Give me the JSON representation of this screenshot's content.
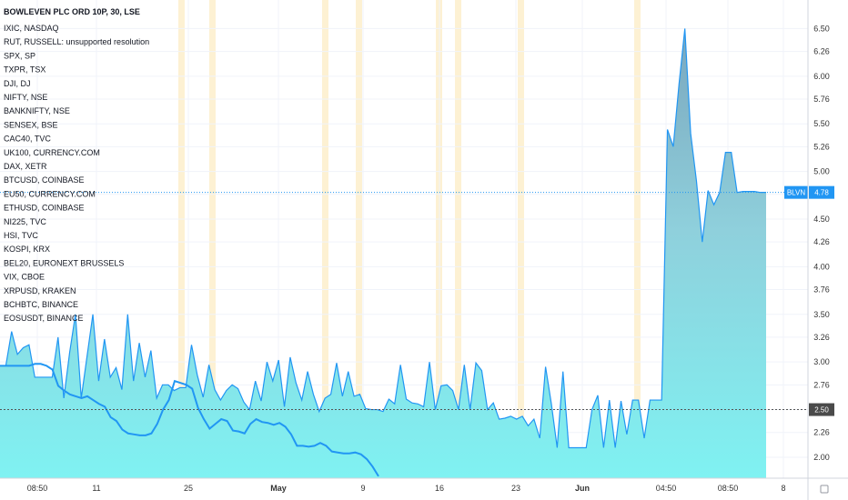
{
  "chart_data": {
    "type": "area",
    "title": "BOWLEVEN PLC ORD 10P, 30, LSE",
    "legend": [
      "IXIC, NASDAQ",
      "RUT, RUSSELL: unsupported resolution",
      "SPX, SP",
      "TXPR, TSX",
      "DJI, DJ",
      "NIFTY, NSE",
      "BANKNIFTY, NSE",
      "SENSEX, BSE",
      "CAC40, TVC",
      "UK100, CURRENCY.COM",
      "DAX, XETR",
      "BTCUSD, COINBASE",
      "EU50, CURRENCY.COM",
      "ETHUSD, COINBASE",
      "NI225, TVC",
      "HSI, TVC",
      "KOSPI, KRX",
      "BEL20, EURONEXT BRUSSELS",
      "VIX, CBOE",
      "XRPUSD, KRAKEN",
      "BCHBTC, BINANCE",
      "EOSUSDT, BINANCE"
    ],
    "y_ticks": [
      "6.50",
      "6.26",
      "6.00",
      "5.76",
      "5.50",
      "5.26",
      "5.00",
      "4.76",
      "4.50",
      "4.26",
      "4.00",
      "3.76",
      "3.50",
      "3.26",
      "3.00",
      "2.76",
      "2.50",
      "2.26",
      "2.00"
    ],
    "x_ticks": [
      "08:50",
      "11",
      "25",
      "May",
      "9",
      "16",
      "23",
      "Jun",
      "04:50",
      "08:50",
      "8"
    ],
    "ylim": [
      1.78,
      6.8
    ],
    "last_price": {
      "symbol": "BLVN",
      "value": "4.78"
    },
    "reference_level": {
      "value": "2.50"
    },
    "series": [
      {
        "values": [
          2.96,
          2.96,
          3.32,
          3.08,
          3.15,
          3.18,
          2.84,
          2.84,
          2.84,
          2.84,
          3.26,
          2.62,
          3.1,
          3.5,
          2.62,
          3.06,
          3.5,
          2.8,
          3.24,
          2.84,
          2.94,
          2.71,
          3.5,
          2.8,
          3.2,
          2.84,
          3.12,
          2.62,
          2.76,
          2.76,
          2.7,
          2.73,
          2.73,
          3.18,
          2.86,
          2.63,
          2.97,
          2.71,
          2.6,
          2.7,
          2.76,
          2.72,
          2.58,
          2.5,
          2.8,
          2.59,
          3.0,
          2.8,
          3.02,
          2.53,
          3.05,
          2.78,
          2.6,
          2.9,
          2.66,
          2.48,
          2.62,
          2.66,
          2.99,
          2.64,
          2.9,
          2.64,
          2.66,
          2.51,
          2.5,
          2.5,
          2.48,
          2.61,
          2.56,
          2.97,
          2.61,
          2.57,
          2.56,
          2.53,
          3.0,
          2.5,
          2.75,
          2.76,
          2.7,
          2.5,
          2.97,
          2.5,
          2.99,
          2.91,
          2.5,
          2.57,
          2.4,
          2.41,
          2.43,
          2.4,
          2.43,
          2.33,
          2.4,
          2.2,
          2.95,
          2.56,
          2.1,
          2.9,
          2.1,
          2.1,
          2.1,
          2.1,
          2.5,
          2.65,
          2.1,
          2.6,
          2.1,
          2.59,
          2.24,
          2.6,
          2.6,
          2.2,
          2.6,
          2.6,
          2.6,
          5.44,
          5.26,
          5.92,
          6.5,
          5.4,
          4.9,
          4.26,
          4.8,
          4.65,
          4.78,
          5.2,
          5.2,
          4.78,
          4.79,
          4.79,
          4.79,
          4.78,
          4.78
        ]
      },
      {
        "values": [
          2.96,
          2.96,
          2.96,
          2.96,
          2.96,
          2.96,
          2.98,
          2.98,
          2.96,
          2.92,
          2.75,
          2.7,
          2.66,
          2.64,
          2.62,
          2.64,
          2.6,
          2.56,
          2.53,
          2.42,
          2.38,
          2.29,
          2.25,
          2.24,
          2.23,
          2.23,
          2.25,
          2.35,
          2.5,
          2.6,
          2.8,
          2.78,
          2.76,
          2.72,
          2.52,
          2.4,
          2.3,
          2.35,
          2.4,
          2.38,
          2.28,
          2.27,
          2.25,
          2.35,
          2.4,
          2.37,
          2.36,
          2.34,
          2.36,
          2.32,
          2.24,
          2.12,
          2.12,
          2.11,
          2.12,
          2.15,
          2.12,
          2.06,
          2.05,
          2.04,
          2.04,
          2.05,
          2.03,
          1.98,
          1.9,
          1.8
        ]
      }
    ],
    "x_axis_has_today_marker": true
  }
}
